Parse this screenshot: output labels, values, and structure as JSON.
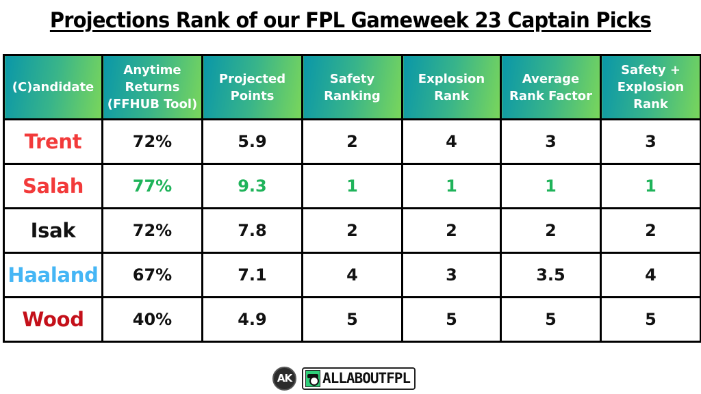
{
  "title": "Projections Rank of our FPL Gameweek 23 Captain Picks",
  "table": {
    "headers": [
      [
        "(C)andidate"
      ],
      [
        "Anytime",
        "Returns",
        "(FFHUB Tool)"
      ],
      [
        "Projected",
        "Points"
      ],
      [
        "Safety",
        "Ranking"
      ],
      [
        "Explosion",
        "Rank"
      ],
      [
        "Average",
        "Rank Factor"
      ],
      [
        "Safety +",
        "Explosion",
        "Rank"
      ]
    ],
    "rows": [
      {
        "name": "Trent",
        "name_color": "#f23a3a",
        "anytime_returns": "72%",
        "projected_points": "5.9",
        "safety_ranking": "2",
        "explosion_rank": "4",
        "average_rank_factor": "3",
        "safety_explosion_rank": "3",
        "highlight": false
      },
      {
        "name": "Salah",
        "name_color": "#f23a3a",
        "anytime_returns": "77%",
        "projected_points": "9.3",
        "safety_ranking": "1",
        "explosion_rank": "1",
        "average_rank_factor": "1",
        "safety_explosion_rank": "1",
        "highlight": true
      },
      {
        "name": "Isak",
        "name_color": "#111111",
        "anytime_returns": "72%",
        "projected_points": "7.8",
        "safety_ranking": "2",
        "explosion_rank": "2",
        "average_rank_factor": "2",
        "safety_explosion_rank": "2",
        "highlight": false
      },
      {
        "name": "Haaland",
        "name_color": "#45b6f5",
        "anytime_returns": "67%",
        "projected_points": "7.1",
        "safety_ranking": "4",
        "explosion_rank": "3",
        "average_rank_factor": "3.5",
        "safety_explosion_rank": "4",
        "highlight": false
      },
      {
        "name": "Wood",
        "name_color": "#c4101a",
        "anytime_returns": "40%",
        "projected_points": "4.9",
        "safety_ranking": "5",
        "explosion_rank": "5",
        "average_rank_factor": "5",
        "safety_explosion_rank": "5",
        "highlight": false
      }
    ],
    "highlight_color": "#1fb35a"
  },
  "chart_data": {
    "type": "table",
    "title": "Projections Rank of our FPL Gameweek 23 Captain Picks",
    "columns": [
      "(C)andidate",
      "Anytime Returns (FFHUB Tool)",
      "Projected Points",
      "Safety Ranking",
      "Explosion Rank",
      "Average Rank Factor",
      "Safety + Explosion Rank"
    ],
    "rows": [
      [
        "Trent",
        "72%",
        5.9,
        2,
        4,
        3,
        3
      ],
      [
        "Salah",
        "77%",
        9.3,
        1,
        1,
        1,
        1
      ],
      [
        "Isak",
        "72%",
        7.8,
        2,
        2,
        2,
        2
      ],
      [
        "Haaland",
        "67%",
        7.1,
        4,
        3,
        3.5,
        4
      ],
      [
        "Wood",
        "40%",
        4.9,
        5,
        5,
        5,
        5
      ]
    ]
  },
  "footer": {
    "ak_logo_text": "AK",
    "brand_text": "ALLABOUTFPL",
    "icons": [
      "ak-circle-logo",
      "boot-and-ball-icon"
    ]
  }
}
